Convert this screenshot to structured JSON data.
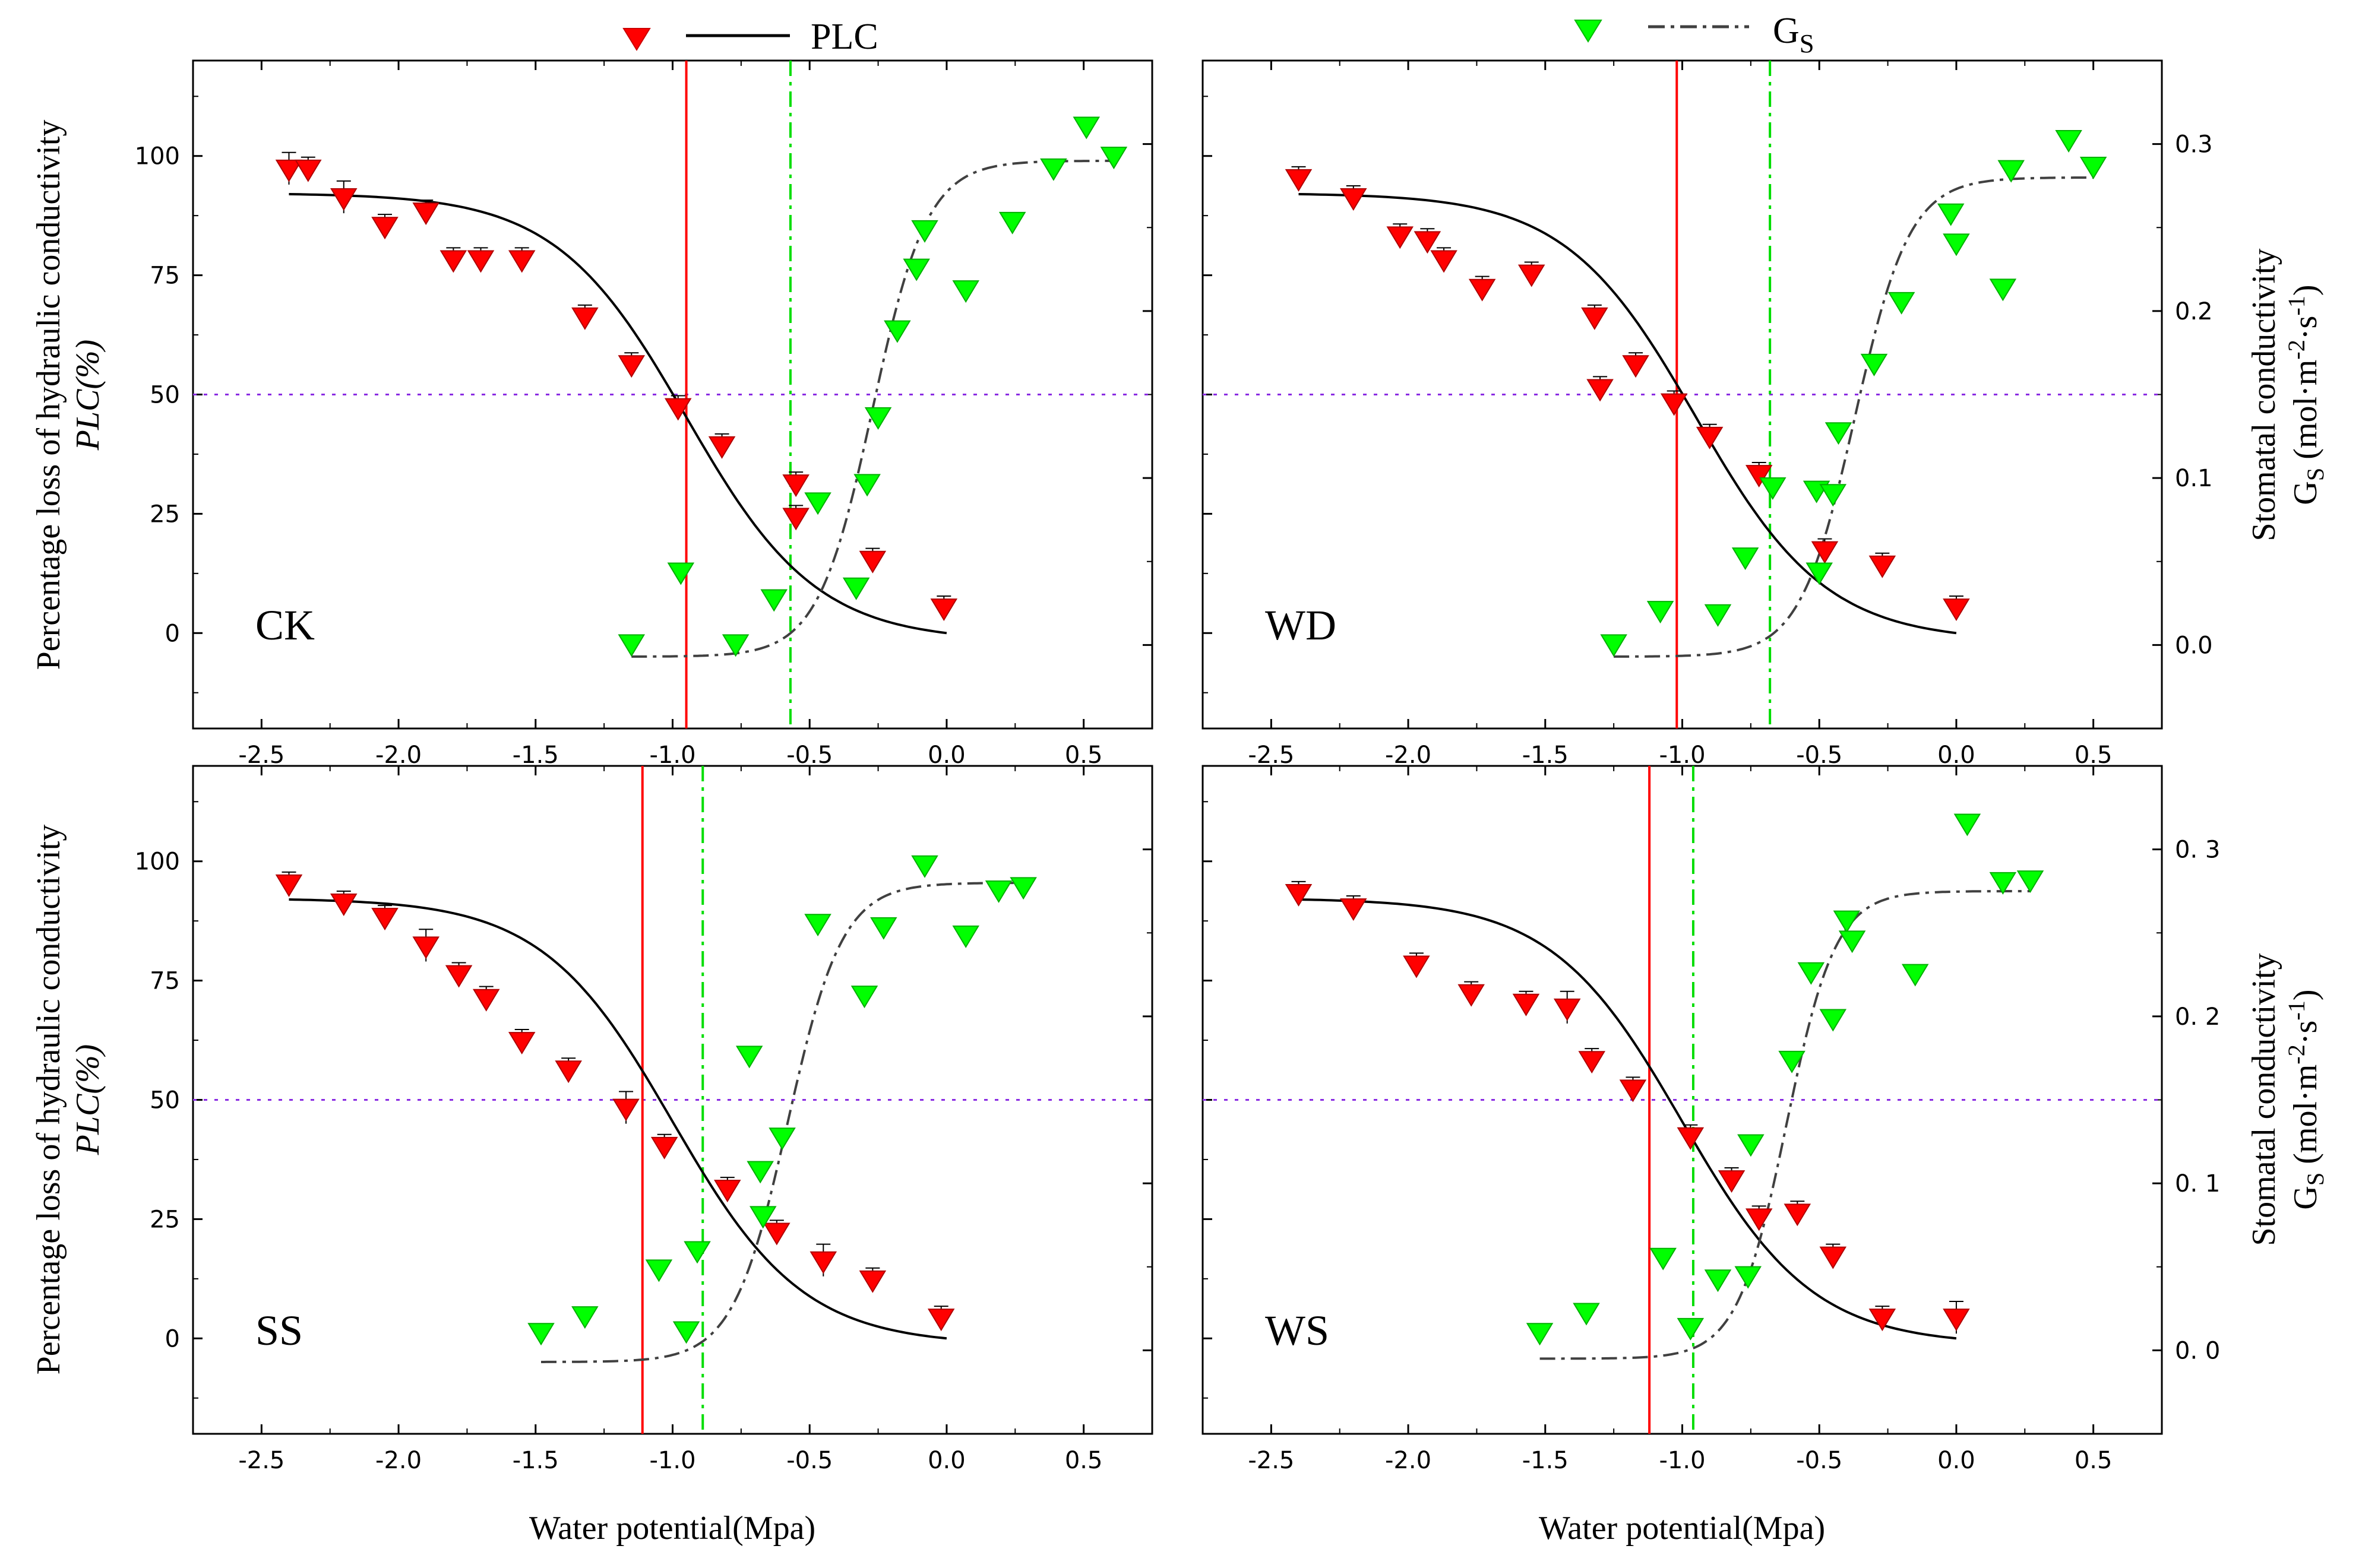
{
  "legend": {
    "plc_label": "PLC",
    "gs_label": "G",
    "gs_label_sub": "S"
  },
  "colors": {
    "plc_marker": "#ff0000",
    "gs_marker": "#00ff00",
    "plc_curve": "#000000",
    "gs_curve": "#404040",
    "plc50_line": "#ff0000",
    "gs50_line": "#00dd00",
    "ref50_line": "#8a2be2"
  },
  "axes_text": {
    "xlabel": "Water potential(Mpa)",
    "ylabel_left_line1": "Percentage loss of hydraulic conductivity",
    "ylabel_left_line2": "PLC(%)",
    "ylabel_right_line1": "Stomatal conductivity",
    "ylabel_right_line2_a": "G",
    "ylabel_right_line2_b": "S",
    "ylabel_right_line2_c": " (mol·m",
    "ylabel_right_line2_d": "-2",
    "ylabel_right_line2_e": "·s",
    "ylabel_right_line2_f": "-1",
    "ylabel_right_line2_g": ")"
  },
  "chart_data": [
    {
      "type": "scatter",
      "panel": "CK",
      "xlim": [
        -2.75,
        0.75
      ],
      "xticks": [
        -2.5,
        -2.0,
        -1.5,
        -1.0,
        -0.5,
        0.0,
        0.5
      ],
      "xtick_labels": [
        "-2.5",
        "-2.0",
        "-1.5",
        "-1.0",
        "-0.5",
        "0.0",
        "0.5"
      ],
      "ylim_left": [
        -20,
        120
      ],
      "yticks_left": [
        0,
        25,
        50,
        75,
        100
      ],
      "ytick_labels_left": [
        "0",
        "25",
        "50",
        "75",
        "100"
      ],
      "ylim_right": [
        -0.05,
        0.35
      ],
      "yticks_right": [
        0.0,
        0.1,
        0.2,
        0.3
      ],
      "ytick_labels_right": [
        "0.0",
        "0.1",
        "0.2",
        "0.3"
      ],
      "plc50_x": -0.95,
      "gs50_x": -0.57,
      "ref_line_y": 50,
      "plc_points": [
        [
          -2.4,
          97,
          3
        ],
        [
          -2.33,
          97,
          2
        ],
        [
          -2.2,
          91,
          3
        ],
        [
          -2.05,
          85,
          2
        ],
        [
          -1.9,
          88,
          2
        ],
        [
          -1.8,
          78,
          2
        ],
        [
          -1.7,
          78,
          2
        ],
        [
          -1.55,
          78,
          2
        ],
        [
          -1.32,
          66,
          2
        ],
        [
          -1.15,
          56,
          2
        ],
        [
          -0.98,
          47,
          2
        ],
        [
          -0.82,
          39,
          2
        ],
        [
          -0.55,
          31,
          2
        ],
        [
          -0.55,
          24,
          2
        ],
        [
          -0.27,
          15,
          2
        ],
        [
          -0.01,
          5,
          2
        ]
      ],
      "gs_points": [
        [
          -1.15,
          0.0
        ],
        [
          -0.97,
          0.043
        ],
        [
          -0.77,
          0.0
        ],
        [
          -0.63,
          0.027
        ],
        [
          -0.47,
          0.085
        ],
        [
          -0.33,
          0.034
        ],
        [
          -0.29,
          0.096
        ],
        [
          -0.25,
          0.136
        ],
        [
          -0.18,
          0.188
        ],
        [
          -0.11,
          0.225
        ],
        [
          -0.08,
          0.248
        ],
        [
          0.07,
          0.212
        ],
        [
          0.24,
          0.253
        ],
        [
          0.39,
          0.285
        ],
        [
          0.51,
          0.31
        ],
        [
          0.61,
          0.292
        ]
      ],
      "plc_fit": {
        "type": "exponential_sigmoid",
        "a": 4.2,
        "b": -0.95
      },
      "gs_fit": {
        "type": "sigmoid",
        "max": 0.29,
        "x50": -0.27,
        "slope": 0.1,
        "offset": -0.007
      }
    },
    {
      "type": "scatter",
      "panel": "WD",
      "xlim": [
        -2.75,
        0.75
      ],
      "xticks": [
        -2.5,
        -2.0,
        -1.5,
        -1.0,
        -0.5,
        0.0,
        0.5
      ],
      "xtick_labels": [
        "-2.5",
        "-2.0",
        "-1.5",
        "-1.0",
        "-0.5",
        "0.0",
        "0.5"
      ],
      "ylim_left": [
        -20,
        120
      ],
      "yticks_left": [
        0,
        25,
        50,
        75,
        100
      ],
      "ytick_labels_left": [
        "0",
        "25",
        "50",
        "75",
        "100"
      ],
      "ylim_right": [
        -0.05,
        0.35
      ],
      "yticks_right": [
        0.0,
        0.1,
        0.2,
        0.3
      ],
      "ytick_labels_right": [
        "0.0",
        "0.1",
        "0.2",
        "0.3"
      ],
      "plc50_x": -1.02,
      "gs50_x": -0.68,
      "ref_line_y": 50,
      "plc_points": [
        [
          -2.4,
          95,
          2
        ],
        [
          -2.2,
          91,
          2
        ],
        [
          -2.03,
          83,
          2
        ],
        [
          -1.93,
          82,
          2
        ],
        [
          -1.87,
          78,
          2
        ],
        [
          -1.73,
          72,
          2
        ],
        [
          -1.55,
          75,
          2
        ],
        [
          -1.32,
          66,
          2
        ],
        [
          -1.3,
          51,
          2
        ],
        [
          -1.17,
          56,
          2
        ],
        [
          -1.03,
          48,
          2
        ],
        [
          -0.9,
          41,
          2
        ],
        [
          -0.72,
          33,
          2
        ],
        [
          -0.48,
          17,
          2
        ],
        [
          -0.27,
          14,
          2
        ],
        [
          0.0,
          5,
          2
        ]
      ],
      "gs_points": [
        [
          -1.25,
          0.0
        ],
        [
          -1.08,
          0.02
        ],
        [
          -0.87,
          0.018
        ],
        [
          -0.77,
          0.052
        ],
        [
          -0.67,
          0.094
        ],
        [
          -0.51,
          0.092
        ],
        [
          -0.5,
          0.043
        ],
        [
          -0.45,
          0.09
        ],
        [
          -0.43,
          0.127
        ],
        [
          -0.3,
          0.168
        ],
        [
          -0.2,
          0.205
        ],
        [
          -0.02,
          0.258
        ],
        [
          0.0,
          0.24
        ],
        [
          0.17,
          0.213
        ],
        [
          0.2,
          0.284
        ],
        [
          0.41,
          0.302
        ],
        [
          0.5,
          0.286
        ]
      ],
      "plc_fit": {
        "type": "exponential_sigmoid",
        "a": 4.2,
        "b": -0.95
      },
      "gs_fit": {
        "type": "sigmoid",
        "max": 0.28,
        "x50": -0.37,
        "slope": 0.1,
        "offset": -0.007
      }
    },
    {
      "type": "scatter",
      "panel": "SS",
      "xlim": [
        -2.75,
        0.75
      ],
      "xticks": [
        -2.5,
        -2.0,
        -1.5,
        -1.0,
        -0.5,
        0.0,
        0.5
      ],
      "xtick_labels": [
        "-2.5",
        "-2.0",
        "-1.5",
        "-1.0",
        "-0.5",
        "0.0",
        "0.5"
      ],
      "ylim_left": [
        -20,
        120
      ],
      "yticks_left": [
        0,
        25,
        50,
        75,
        100
      ],
      "ytick_labels_left": [
        "0",
        "25",
        "50",
        "75",
        "100"
      ],
      "ylim_right": [
        -0.05,
        0.35
      ],
      "yticks_right": [
        0.0,
        0.1,
        0.2,
        0.3
      ],
      "ytick_labels_right": [
        "0. 0",
        "0. 1",
        "0. 2",
        "0. 3"
      ],
      "plc50_x": -1.11,
      "gs50_x": -0.89,
      "ref_line_y": 50,
      "plc_points": [
        [
          -2.4,
          95,
          2
        ],
        [
          -2.2,
          91,
          2
        ],
        [
          -2.05,
          88,
          2
        ],
        [
          -1.9,
          82,
          3
        ],
        [
          -1.78,
          76,
          2
        ],
        [
          -1.68,
          71,
          2
        ],
        [
          -1.55,
          62,
          2
        ],
        [
          -1.38,
          56,
          2
        ],
        [
          -1.17,
          48,
          3
        ],
        [
          -1.03,
          40,
          2
        ],
        [
          -0.8,
          31,
          2
        ],
        [
          -0.62,
          22,
          2
        ],
        [
          -0.45,
          16,
          3
        ],
        [
          -0.27,
          12,
          2
        ],
        [
          -0.02,
          4,
          2
        ]
      ],
      "gs_points": [
        [
          -1.48,
          0.01
        ],
        [
          -1.32,
          0.02
        ],
        [
          -1.05,
          0.048
        ],
        [
          -0.95,
          0.011
        ],
        [
          -0.91,
          0.059
        ],
        [
          -0.72,
          0.176
        ],
        [
          -0.68,
          0.107
        ],
        [
          -0.67,
          0.08
        ],
        [
          -0.6,
          0.127
        ],
        [
          -0.47,
          0.255
        ],
        [
          -0.3,
          0.212
        ],
        [
          -0.23,
          0.253
        ],
        [
          -0.08,
          0.29
        ],
        [
          0.07,
          0.248
        ],
        [
          0.19,
          0.275
        ],
        [
          0.28,
          0.277
        ]
      ],
      "plc_fit": {
        "type": "exponential_sigmoid",
        "a": 4.2,
        "b": -1.0
      },
      "gs_fit": {
        "type": "sigmoid",
        "max": 0.28,
        "x50": -0.58,
        "slope": 0.1,
        "offset": -0.007
      }
    },
    {
      "type": "scatter",
      "panel": "WS",
      "xlim": [
        -2.75,
        0.75
      ],
      "xticks": [
        -2.5,
        -2.0,
        -1.5,
        -1.0,
        -0.5,
        0.0,
        0.5
      ],
      "xtick_labels": [
        "-2.5",
        "-2.0",
        "-1.5",
        "-1.0",
        "-0.5",
        "0.0",
        "0.5"
      ],
      "ylim_left": [
        -20,
        120
      ],
      "yticks_left": [
        0,
        25,
        50,
        75,
        100
      ],
      "ytick_labels_left": [
        "0",
        "25",
        "50",
        "75",
        "100"
      ],
      "ylim_right": [
        -0.05,
        0.35
      ],
      "yticks_right": [
        0.0,
        0.1,
        0.2,
        0.3
      ],
      "ytick_labels_right": [
        "0. 0",
        "0. 1",
        "0. 2",
        "0. 3"
      ],
      "plc50_x": -1.12,
      "gs50_x": -0.96,
      "ref_line_y": 50,
      "plc_points": [
        [
          -2.4,
          93,
          2
        ],
        [
          -2.2,
          90,
          2
        ],
        [
          -1.97,
          78,
          2
        ],
        [
          -1.77,
          72,
          2
        ],
        [
          -1.57,
          70,
          2
        ],
        [
          -1.42,
          69,
          3
        ],
        [
          -1.33,
          58,
          2
        ],
        [
          -1.18,
          52,
          2
        ],
        [
          -0.97,
          42,
          2
        ],
        [
          -0.82,
          33,
          2
        ],
        [
          -0.72,
          25,
          2
        ],
        [
          -0.58,
          26,
          2
        ],
        [
          -0.45,
          17,
          2
        ],
        [
          -0.27,
          4,
          2
        ],
        [
          0.0,
          4,
          3
        ]
      ],
      "gs_points": [
        [
          -1.52,
          0.01
        ],
        [
          -1.35,
          0.022
        ],
        [
          -1.07,
          0.055
        ],
        [
          -0.97,
          0.013
        ],
        [
          -0.87,
          0.042
        ],
        [
          -0.76,
          0.044
        ],
        [
          -0.75,
          0.123
        ],
        [
          -0.6,
          0.173
        ],
        [
          -0.53,
          0.226
        ],
        [
          -0.45,
          0.198
        ],
        [
          -0.4,
          0.257
        ],
        [
          -0.38,
          0.245
        ],
        [
          -0.15,
          0.225
        ],
        [
          0.04,
          0.315
        ],
        [
          0.17,
          0.28
        ],
        [
          0.27,
          0.281
        ]
      ],
      "plc_fit": {
        "type": "exponential_sigmoid",
        "a": 4.2,
        "b": -1.0
      },
      "gs_fit": {
        "type": "sigmoid",
        "max": 0.275,
        "x50": -0.62,
        "slope": 0.09,
        "offset": -0.005
      }
    }
  ]
}
